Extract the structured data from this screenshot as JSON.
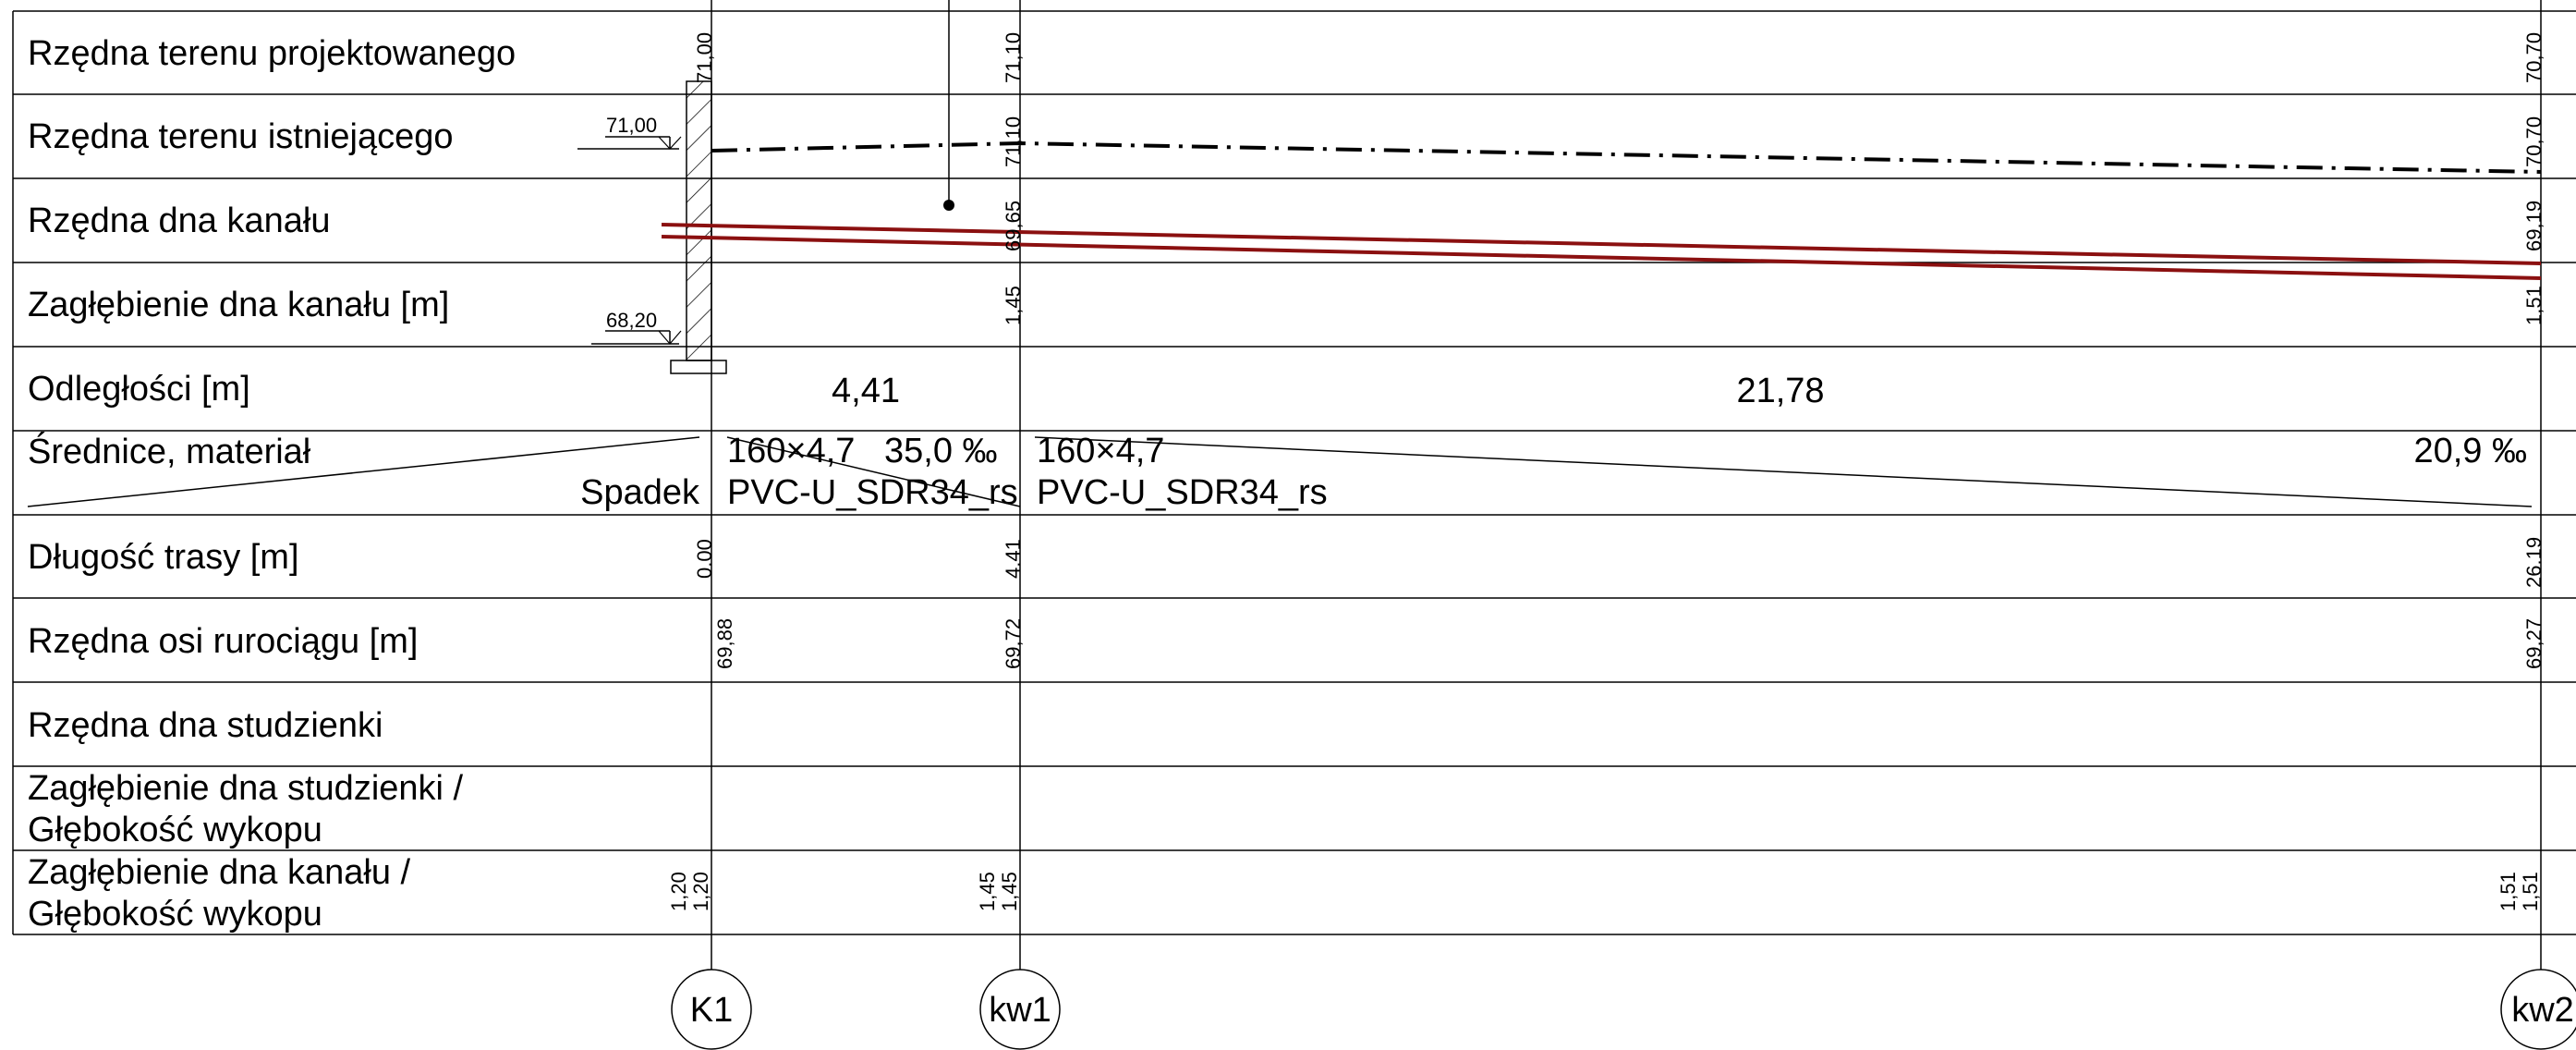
{
  "rows": [
    {
      "label": "Rzędna terenu projektowanego"
    },
    {
      "label": "Rzędna terenu istniejącego"
    },
    {
      "label": "Rzędna dna kanału"
    },
    {
      "label": "Zagłębienie dna kanału [m]"
    },
    {
      "label": "Odległości [m]"
    },
    {
      "label": "Średnice, materiał",
      "sublabel": "Spadek"
    },
    {
      "label": "Długość trasy [m]"
    },
    {
      "label": "Rzędna osi rurociągu [m]"
    },
    {
      "label": "Rzędna dna studzienki"
    },
    {
      "label": "Zagłębienie dna studzienki /",
      "label2": "Głębokość wykopu"
    },
    {
      "label": "Zagłębienie dna kanału /",
      "label2": "Głębokość wykopu"
    }
  ],
  "nodes": [
    {
      "name": "K1",
      "station": 0.0
    },
    {
      "name": "kw1",
      "station": 4.41
    },
    {
      "name": "kw2",
      "station": 26.19
    }
  ],
  "values": {
    "terrain_design": [
      "71,00",
      "71,10",
      "70,70"
    ],
    "terrain_existing": [
      "71,10",
      "70,70"
    ],
    "invert": [
      "69,65",
      "69,19"
    ],
    "depth": [
      "1,45",
      "1,51"
    ],
    "distances": [
      "4,41",
      "21,78"
    ],
    "diam_1": "160×4,7",
    "slope_1": "35,0 ‰",
    "material_1": "PVC-U_SDR34_rs",
    "diam_2": "160×4,7",
    "slope_2": "20,9 ‰",
    "material_2": "PVC-U_SDR34_rs",
    "route_length": [
      "0.00",
      "4.41",
      "26.19"
    ],
    "pipe_axis": [
      "69,88",
      "69,72",
      "69,27"
    ],
    "trench_k1_a": "1,20",
    "trench_k1_b": "1,20",
    "trench_kw1_a": "1,45",
    "trench_kw1_b": "1,45",
    "trench_kw2_a": "1,51",
    "trench_kw2_b": "1,51"
  },
  "wall_marks": {
    "top": "71,00",
    "bottom": "68,20"
  },
  "colors": {
    "pipe": "#8b1010",
    "grid": "#000000",
    "ground": "#000000"
  }
}
